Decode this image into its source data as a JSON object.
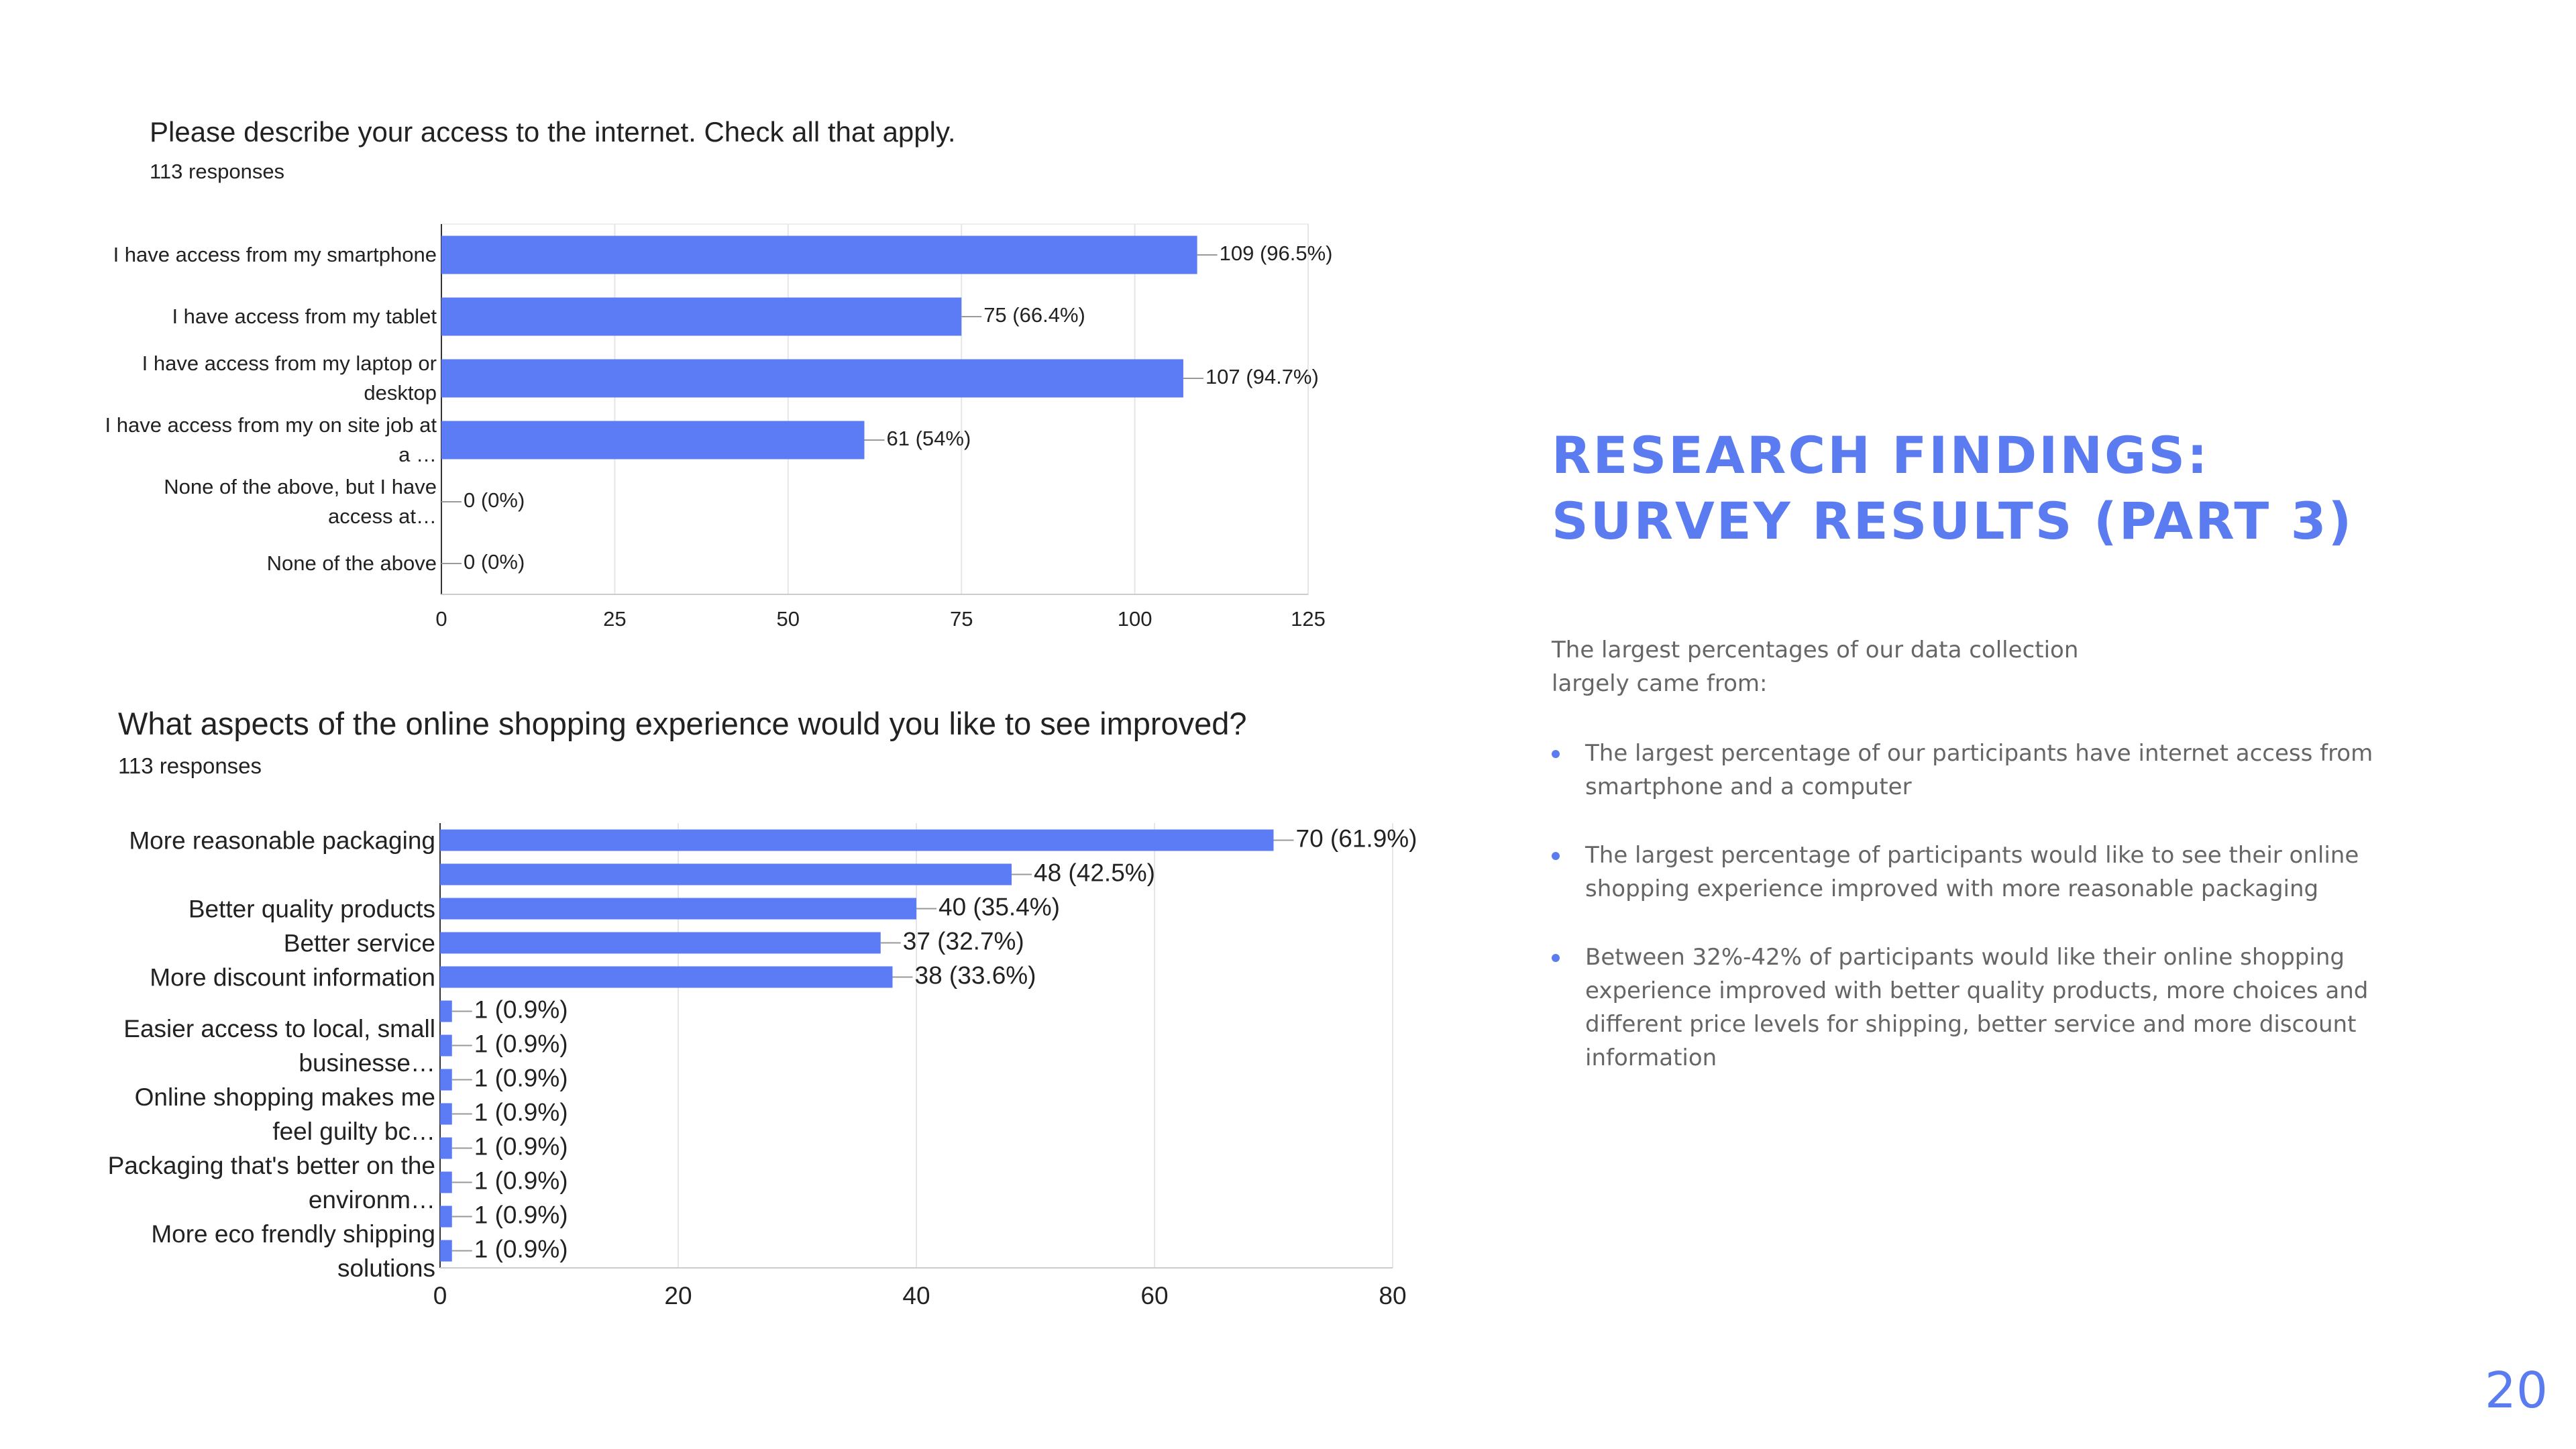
{
  "chart_data": [
    {
      "type": "bar",
      "orientation": "horizontal",
      "title": "Please describe your access to the internet. Check all that apply.",
      "subtitle": "113 responses",
      "categories": [
        "I have access from my smartphone",
        "I have access from my tablet",
        "I have access from my laptop or desktop",
        "I have access from my on site job at a …",
        "None of the above, but I have access at…",
        "None of the above"
      ],
      "values": [
        109,
        75,
        107,
        61,
        0,
        0
      ],
      "value_labels": [
        "109 (96.5%)",
        "75 (66.4%)",
        "107 (94.7%)",
        "61 (54%)",
        "0 (0%)",
        "0 (0%)"
      ],
      "color": "#5b7cf5",
      "xlim": [
        0,
        125
      ],
      "xticks": [
        0,
        25,
        50,
        75,
        100,
        125
      ],
      "grid": true
    },
    {
      "type": "bar",
      "orientation": "horizontal",
      "title": "What aspects of the online shopping experience would you like to see improved?",
      "subtitle": "113 responses",
      "categories": [
        "More reasonable packaging",
        null,
        "Better quality products",
        "Better service",
        "More discount information",
        null,
        "Easier access to local, small businesse…",
        null,
        "Online shopping makes me feel guilty bc…",
        null,
        "Packaging that's better on the environm…",
        null,
        "More eco frendly shipping solutions"
      ],
      "values": [
        70,
        48,
        40,
        37,
        38,
        1,
        1,
        1,
        1,
        1,
        1,
        1,
        1
      ],
      "value_labels": [
        "70 (61.9%)",
        "48 (42.5%)",
        "40 (35.4%)",
        "37 (32.7%)",
        "38 (33.6%)",
        "1 (0.9%)",
        "1 (0.9%)",
        "1 (0.9%)",
        "1 (0.9%)",
        "1 (0.9%)",
        "1 (0.9%)",
        "1 (0.9%)",
        "1 (0.9%)"
      ],
      "color": "#5b7cf5",
      "xlim": [
        0,
        80
      ],
      "xticks": [
        0,
        20,
        40,
        60,
        80
      ],
      "grid": true
    }
  ],
  "slide": {
    "heading": [
      "RESEARCH FINDINGS:",
      "SURVEY RESULTS (PART 3)"
    ],
    "intro": "The largest percentages of our data collection largely came from:",
    "bullets": [
      "The largest percentage of our participants have internet access from smartphone and a computer",
      "The largest percentage of participants would like to see their online shopping experience improved with more reasonable packaging",
      "Between 32%-42% of participants would like their online shopping experience improved with better quality products, more choices and different price levels for shipping, better service and more discount information"
    ],
    "page_number": "20"
  }
}
